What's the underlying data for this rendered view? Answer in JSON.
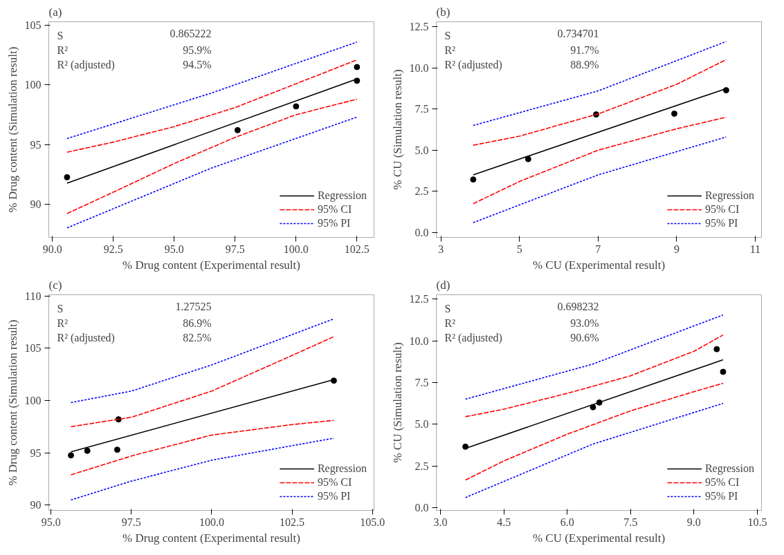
{
  "chart_data": [
    {
      "type": "scatter",
      "title": "(a)",
      "xlabel": "% Drug content (Experimental result)",
      "ylabel": "% Drug content (Simulation result)",
      "xlim": [
        89.85,
        103.2
      ],
      "ylim": [
        87.2,
        105.3
      ],
      "xticks": [
        {
          "value": 90,
          "label": "90.0"
        },
        {
          "value": 92.5,
          "label": "92.5"
        },
        {
          "value": 95,
          "label": "95.0"
        },
        {
          "value": 97.5,
          "label": "97.5"
        },
        {
          "value": 100,
          "label": "100.0"
        },
        {
          "value": 102.5,
          "label": "102.5"
        }
      ],
      "yticks": [
        90,
        95,
        100,
        105
      ],
      "grid": false,
      "legend": "bottom right",
      "annotations": [
        "S",
        "0.865222",
        "R²",
        "95.9%",
        "R² (adjusted)",
        "94.5%"
      ],
      "series": [
        {
          "marker": "circle",
          "color": "#000000",
          "x": [
            90.6,
            97.6,
            100.0,
            102.5,
            102.5
          ],
          "values": [
            92.25,
            96.2,
            98.2,
            101.5,
            100.35
          ]
        },
        {
          "type": "line",
          "name": "Regression",
          "line_style": "solid",
          "color": "#000000",
          "x": [
            90.6,
            102.5
          ],
          "values": [
            91.75,
            100.5
          ]
        },
        {
          "type": "line",
          "name": "95% CI",
          "line_style": "dashed",
          "color": "#ff0000",
          "x": [
            90.6,
            92.5,
            95.0,
            97.5,
            100.0,
            102.5
          ],
          "values": [
            94.35,
            95.2,
            96.5,
            98.1,
            100.1,
            102.1
          ]
        },
        {
          "type": "line",
          "line_style": "dashed",
          "color": "#ff0000",
          "x": [
            90.6,
            92.5,
            95.0,
            97.5,
            100.0,
            102.5
          ],
          "values": [
            89.2,
            91.0,
            93.4,
            95.6,
            97.5,
            98.8
          ]
        },
        {
          "type": "line",
          "name": "95% PI",
          "line_style": "dotted",
          "color": "#0000ff",
          "x": [
            90.6,
            96.5,
            102.5
          ],
          "values": [
            95.5,
            99.3,
            103.6
          ]
        },
        {
          "type": "line",
          "line_style": "dotted",
          "color": "#0000ff",
          "x": [
            90.6,
            96.5,
            102.5
          ],
          "values": [
            88.0,
            93.0,
            97.3
          ]
        }
      ]
    },
    {
      "type": "scatter",
      "title": "(b)",
      "xlabel": "% CU (Experimental result)",
      "ylabel": "% CU (Simulation result)",
      "xlim": [
        2.88,
        11.16
      ],
      "ylim": [
        -0.3,
        12.8
      ],
      "xticks": [
        3,
        5,
        7,
        9,
        11
      ],
      "yticks": [
        {
          "value": 0,
          "label": "0.0"
        },
        {
          "value": 2.5,
          "label": "2.5"
        },
        {
          "value": 5,
          "label": "5.0"
        },
        {
          "value": 7.5,
          "label": "7.5"
        },
        {
          "value": 10,
          "label": "10.0"
        },
        {
          "value": 12.5,
          "label": "12.5"
        }
      ],
      "grid": false,
      "legend": "bottom right",
      "annotations": [
        "S",
        "0.734701",
        "R²",
        "91.7%",
        "R² (adjusted)",
        "88.9%"
      ],
      "series": [
        {
          "marker": "circle",
          "color": "#000000",
          "x": [
            3.82,
            5.22,
            6.95,
            8.94,
            10.26
          ],
          "values": [
            3.22,
            4.46,
            7.17,
            7.22,
            8.64
          ]
        },
        {
          "type": "line",
          "name": "Regression",
          "line_style": "solid",
          "color": "#000000",
          "x": [
            3.82,
            10.26
          ],
          "values": [
            3.5,
            8.74
          ]
        },
        {
          "type": "line",
          "name": "95% CI",
          "line_style": "dashed",
          "color": "#ff0000",
          "x": [
            3.82,
            5,
            7,
            9,
            10.26
          ],
          "values": [
            5.3,
            5.85,
            7.2,
            9.0,
            10.5
          ]
        },
        {
          "type": "line",
          "line_style": "dashed",
          "color": "#ff0000",
          "x": [
            3.82,
            5,
            7,
            9,
            10.26
          ],
          "values": [
            1.75,
            3.1,
            5.0,
            6.3,
            7.0
          ]
        },
        {
          "type": "line",
          "name": "95% PI",
          "line_style": "dotted",
          "color": "#0000ff",
          "x": [
            3.82,
            7,
            10.26
          ],
          "values": [
            6.5,
            8.6,
            11.6
          ]
        },
        {
          "type": "line",
          "line_style": "dotted",
          "color": "#0000ff",
          "x": [
            3.82,
            7,
            10.26
          ],
          "values": [
            0.6,
            3.5,
            5.8
          ]
        }
      ]
    },
    {
      "type": "scatter",
      "title": "(c)",
      "xlabel": "% Drug content (Experimental result)",
      "ylabel": "% Drug content (Simulation result)",
      "xlim": [
        94.93,
        105.05
      ],
      "ylim": [
        89.5,
        110.1
      ],
      "xticks": [
        {
          "value": 95,
          "label": "95.0"
        },
        {
          "value": 97.5,
          "label": "97.5"
        },
        {
          "value": 100,
          "label": "100.0"
        },
        {
          "value": 102.5,
          "label": "102.5"
        },
        {
          "value": 105,
          "label": "105.0"
        }
      ],
      "yticks": [
        90,
        95,
        100,
        105,
        110
      ],
      "grid": false,
      "legend": "bottom right",
      "annotations": [
        "S",
        "1.27525",
        "R²",
        "86.9%",
        "R² (adjusted)",
        "82.5%"
      ],
      "series": [
        {
          "marker": "circle",
          "color": "#000000",
          "x": [
            95.62,
            96.13,
            97.06,
            97.1,
            103.8
          ],
          "values": [
            94.76,
            95.2,
            95.3,
            98.2,
            101.9
          ]
        },
        {
          "type": "line",
          "name": "Regression",
          "line_style": "solid",
          "color": "#000000",
          "x": [
            95.62,
            103.8
          ],
          "values": [
            95.1,
            102.0
          ]
        },
        {
          "type": "line",
          "name": "95% CI",
          "line_style": "dashed",
          "color": "#ff0000",
          "x": [
            95.62,
            97.5,
            100,
            102.5,
            103.8
          ],
          "values": [
            97.5,
            98.4,
            100.9,
            104.3,
            106.1
          ]
        },
        {
          "type": "line",
          "line_style": "dashed",
          "color": "#ff0000",
          "x": [
            95.62,
            97.5,
            100,
            102.5,
            103.8
          ],
          "values": [
            92.9,
            94.7,
            96.7,
            97.7,
            98.1
          ]
        },
        {
          "type": "line",
          "name": "95% PI",
          "line_style": "dotted",
          "color": "#0000ff",
          "x": [
            95.62,
            97.5,
            100,
            103.8
          ],
          "values": [
            99.8,
            100.9,
            103.4,
            107.8
          ]
        },
        {
          "type": "line",
          "line_style": "dotted",
          "color": "#0000ff",
          "x": [
            95.62,
            97.5,
            100,
            103.8
          ],
          "values": [
            90.5,
            92.3,
            94.3,
            96.4
          ]
        }
      ]
    },
    {
      "type": "scatter",
      "title": "(d)",
      "xlabel": "% CU (Experimental result)",
      "ylabel": "% CU (Simulation result)",
      "xlim": [
        2.9,
        10.6
      ],
      "ylim": [
        -0.17,
        12.76
      ],
      "xticks": [
        {
          "value": 3,
          "label": "3.0"
        },
        {
          "value": 4.5,
          "label": "4.5"
        },
        {
          "value": 6,
          "label": "6.0"
        },
        {
          "value": 7.5,
          "label": "7.5"
        },
        {
          "value": 9,
          "label": "9.0"
        },
        {
          "value": 10.5,
          "label": "10.5"
        }
      ],
      "yticks": [
        {
          "value": 0,
          "label": "0.0"
        },
        {
          "value": 2.5,
          "label": "2.5"
        },
        {
          "value": 5,
          "label": "5.0"
        },
        {
          "value": 7.5,
          "label": "7.5"
        },
        {
          "value": 10,
          "label": "10.0"
        },
        {
          "value": 12.5,
          "label": "12.5"
        }
      ],
      "grid": false,
      "legend": "bottom right",
      "annotations": [
        "S",
        "0.698232",
        "R²",
        "93.0%",
        "R² (adjusted)",
        "90.6%"
      ],
      "series": [
        {
          "marker": "circle",
          "color": "#000000",
          "x": [
            3.59,
            6.61,
            6.76,
            9.54,
            9.69
          ],
          "values": [
            3.65,
            6.02,
            6.3,
            9.5,
            8.14
          ]
        },
        {
          "type": "line",
          "name": "Regression",
          "line_style": "solid",
          "color": "#000000",
          "x": [
            3.59,
            9.69
          ],
          "values": [
            3.55,
            8.86
          ]
        },
        {
          "type": "line",
          "name": "95% CI",
          "line_style": "dashed",
          "color": "#ff0000",
          "x": [
            3.59,
            4.5,
            6.0,
            7.5,
            9.0,
            9.69
          ],
          "values": [
            5.45,
            5.9,
            6.85,
            7.9,
            9.37,
            10.35
          ]
        },
        {
          "type": "line",
          "line_style": "dashed",
          "color": "#ff0000",
          "x": [
            3.59,
            4.5,
            6.0,
            7.5,
            9.0,
            9.69
          ],
          "values": [
            1.65,
            2.8,
            4.4,
            5.8,
            6.95,
            7.45
          ]
        },
        {
          "type": "line",
          "name": "95% PI",
          "line_style": "dotted",
          "color": "#0000ff",
          "x": [
            3.59,
            6.6,
            9.69
          ],
          "values": [
            6.5,
            8.6,
            11.55
          ]
        },
        {
          "type": "line",
          "line_style": "dotted",
          "color": "#0000ff",
          "x": [
            3.59,
            6.6,
            9.69
          ],
          "values": [
            0.6,
            3.8,
            6.25
          ]
        }
      ]
    }
  ]
}
